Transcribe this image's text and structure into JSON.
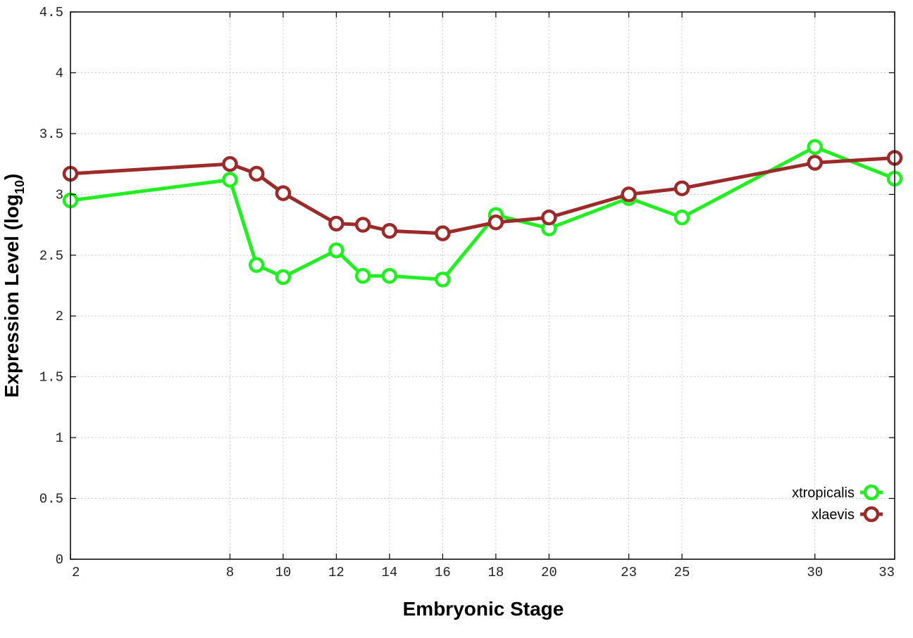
{
  "chart_data": {
    "type": "line",
    "title": "",
    "xlabel": "Embryonic Stage",
    "ylabel": "Expression Level (log",
    "ylabel_sub": "10",
    "ylabel_close": ")",
    "ylim": [
      0,
      4.5
    ],
    "y_ticks": [
      0,
      0.5,
      1,
      1.5,
      2,
      2.5,
      3,
      3.5,
      4,
      4.5
    ],
    "y_tick_labels": [
      "0",
      "0.5",
      "1",
      "1.5",
      "2",
      "2.5",
      "3",
      "3.5",
      "4",
      "4.5"
    ],
    "x_tick_labels": [
      "2",
      "8",
      "10",
      "12",
      "14",
      "16",
      "18",
      "20",
      "23",
      "25",
      "30",
      "33"
    ],
    "x_ticks": [
      2,
      8,
      10,
      12,
      14,
      16,
      18,
      20,
      23,
      25,
      30,
      33
    ],
    "grid": true,
    "legend_position": "bottom-right",
    "series": [
      {
        "name": "xtropicalis",
        "color": "#22ee22",
        "x": [
          2,
          8,
          9,
          10,
          12,
          13,
          14,
          16,
          18,
          20,
          23,
          25,
          30,
          33
        ],
        "values": [
          2.95,
          3.12,
          2.42,
          2.32,
          2.54,
          2.33,
          2.33,
          2.3,
          2.83,
          2.72,
          2.97,
          2.81,
          3.39,
          3.13
        ]
      },
      {
        "name": "xlaevis",
        "color": "#9b2a2a",
        "x": [
          2,
          8,
          9,
          10,
          12,
          13,
          14,
          16,
          18,
          20,
          23,
          25,
          30,
          33
        ],
        "values": [
          3.17,
          3.25,
          3.17,
          3.01,
          2.76,
          2.75,
          2.7,
          2.68,
          2.77,
          2.81,
          3.0,
          3.05,
          3.26,
          3.3
        ]
      }
    ]
  }
}
